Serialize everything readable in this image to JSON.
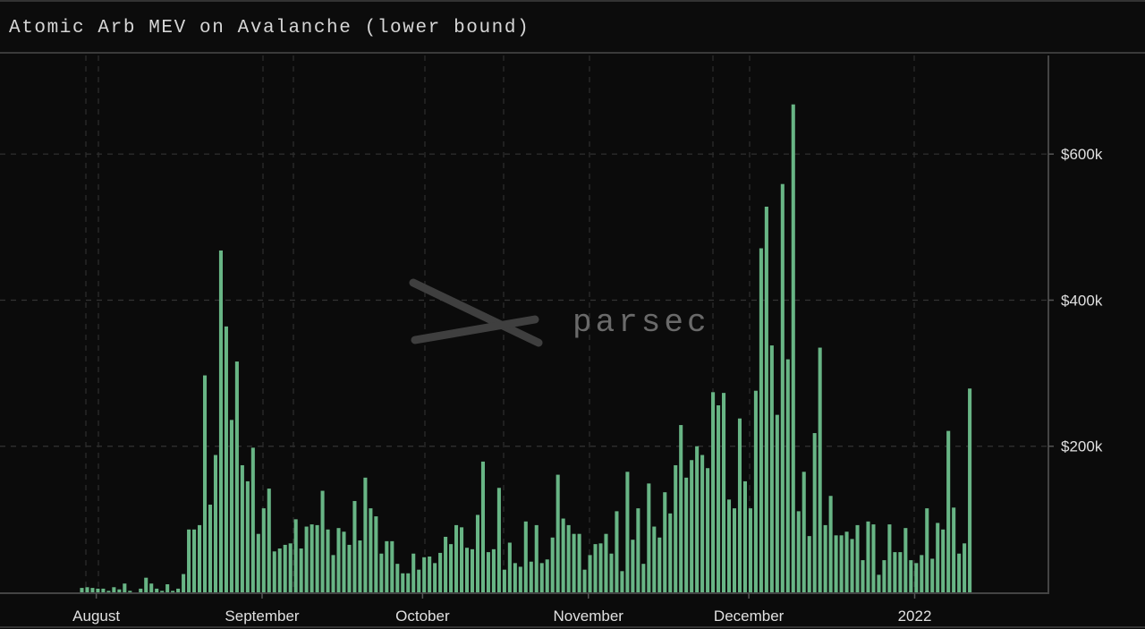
{
  "chart_data": {
    "type": "bar",
    "title": "Atomic Arb MEV on Avalanche (lower bound)",
    "xlabel": "",
    "ylabel": "",
    "x_start_date": "2021-07-29",
    "x_interval": "daily",
    "xlim": [
      "2021-07-14",
      "2022-01-26"
    ],
    "ylim": [
      0,
      735000
    ],
    "y_ticks": [
      {
        "value": 200000,
        "label": "$200k"
      },
      {
        "value": 400000,
        "label": "$400k"
      },
      {
        "value": 600000,
        "label": "$600k"
      }
    ],
    "x_ticks": [
      {
        "date": "2021-08-01",
        "label": "August"
      },
      {
        "date": "2021-09-01",
        "label": "September"
      },
      {
        "date": "2021-10-01",
        "label": "October"
      },
      {
        "date": "2021-11-01",
        "label": "November"
      },
      {
        "date": "2021-12-01",
        "label": "December"
      },
      {
        "date": "2022-01-01",
        "label": "2022"
      }
    ],
    "values_usd_thousands": [
      6,
      7,
      6,
      5,
      5,
      2,
      7,
      4,
      12,
      2,
      0,
      5,
      20,
      12,
      5,
      2,
      11,
      2,
      5,
      25,
      86,
      86,
      92,
      297,
      120,
      188,
      468,
      364,
      236,
      316,
      174,
      152,
      198,
      80,
      115,
      142,
      56,
      60,
      65,
      67,
      100,
      60,
      90,
      93,
      92,
      139,
      86,
      51,
      88,
      83,
      65,
      125,
      71,
      157,
      115,
      104,
      53,
      70,
      70,
      39,
      26,
      26,
      53,
      31,
      48,
      49,
      40,
      54,
      76,
      66,
      92,
      89,
      61,
      59,
      106,
      179,
      55,
      59,
      143,
      31,
      68,
      40,
      35,
      97,
      42,
      92,
      40,
      45,
      75,
      161,
      101,
      92,
      80,
      80,
      31,
      51,
      66,
      67,
      80,
      53,
      111,
      29,
      165,
      72,
      115,
      39,
      149,
      90,
      75,
      137,
      108,
      174,
      229,
      157,
      181,
      200,
      188,
      170,
      274,
      256,
      273,
      127,
      115,
      238,
      152,
      115,
      276,
      471,
      528,
      338,
      243,
      559,
      319,
      668,
      111,
      165,
      77,
      218,
      335,
      92,
      132,
      78,
      78,
      83,
      73,
      92,
      44,
      97,
      93,
      24,
      44,
      93,
      55,
      55,
      88,
      44,
      40,
      51,
      115,
      46,
      95,
      86,
      221,
      116,
      53,
      67,
      279
    ],
    "grid": true,
    "y_axis_position": "right",
    "bar_color": "#68b585",
    "background_color": "#0b0b0b"
  },
  "watermark": {
    "text": "parsec"
  }
}
